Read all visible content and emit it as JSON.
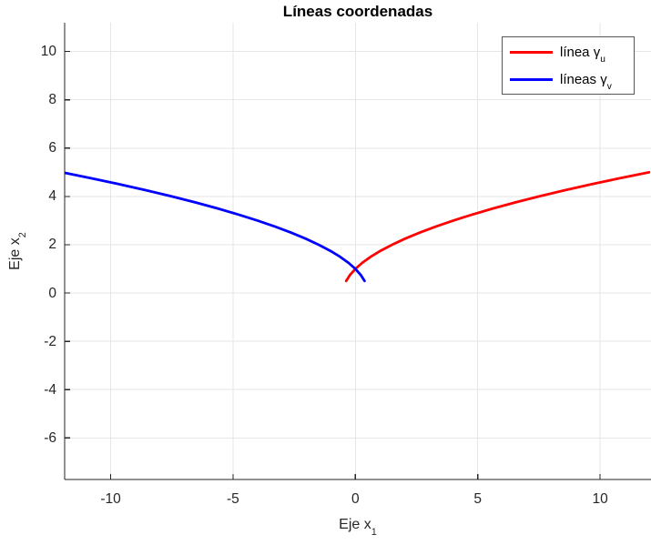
{
  "title": "Líneas coordenadas",
  "chart_data": {
    "type": "line",
    "title": "Líneas coordenadas",
    "xlabel": {
      "text": "Eje x",
      "sub": "1"
    },
    "ylabel": {
      "text": "Eje x",
      "sub": "2"
    },
    "xlim": [
      -11.88,
      12.08
    ],
    "ylim": [
      -7.72,
      11.19
    ],
    "x_ticks": [
      -10,
      -5,
      0,
      5,
      10
    ],
    "x_tick_labels": [
      "-10",
      "-5",
      "0",
      "5",
      "10"
    ],
    "y_ticks": [
      10,
      8,
      6,
      4,
      2,
      0,
      -2,
      -4,
      -6
    ],
    "y_tick_labels": [
      "10",
      "8",
      "6",
      "4",
      "2",
      "0",
      "-2",
      "-4",
      "-6"
    ],
    "grid": true,
    "grid_color": "#e6e6e6",
    "axis_color": "#262626",
    "legend_position": "top-right",
    "series": [
      {
        "name_text": "línea γ",
        "name_sub": "u",
        "color": "#ff0000",
        "points": [
          [
            -0.375,
            0.5
          ],
          [
            -0.219,
            0.75
          ],
          [
            0,
            1
          ],
          [
            0.281,
            1.25
          ],
          [
            0.625,
            1.5
          ],
          [
            1.031,
            1.75
          ],
          [
            1.5,
            2
          ],
          [
            2.031,
            2.25
          ],
          [
            2.625,
            2.5
          ],
          [
            3.281,
            2.75
          ],
          [
            4,
            3
          ],
          [
            4.781,
            3.25
          ],
          [
            5.625,
            3.5
          ],
          [
            6.531,
            3.75
          ],
          [
            7.5,
            4
          ],
          [
            8.531,
            4.25
          ],
          [
            9.625,
            4.5
          ],
          [
            10.781,
            4.75
          ],
          [
            12,
            5
          ]
        ]
      },
      {
        "name_text": "líneas γ",
        "name_sub": "v",
        "color": "#0000ff",
        "points": [
          [
            0.375,
            0.5
          ],
          [
            0.219,
            0.75
          ],
          [
            0,
            1
          ],
          [
            -0.281,
            1.25
          ],
          [
            -0.625,
            1.5
          ],
          [
            -1.031,
            1.75
          ],
          [
            -1.5,
            2
          ],
          [
            -2.031,
            2.25
          ],
          [
            -2.625,
            2.5
          ],
          [
            -3.281,
            2.75
          ],
          [
            -4,
            3
          ],
          [
            -4.781,
            3.25
          ],
          [
            -5.625,
            3.5
          ],
          [
            -6.531,
            3.75
          ],
          [
            -7.5,
            4
          ],
          [
            -8.531,
            4.25
          ],
          [
            -9.625,
            4.5
          ],
          [
            -10.781,
            4.75
          ],
          [
            -12,
            5
          ]
        ]
      }
    ]
  }
}
